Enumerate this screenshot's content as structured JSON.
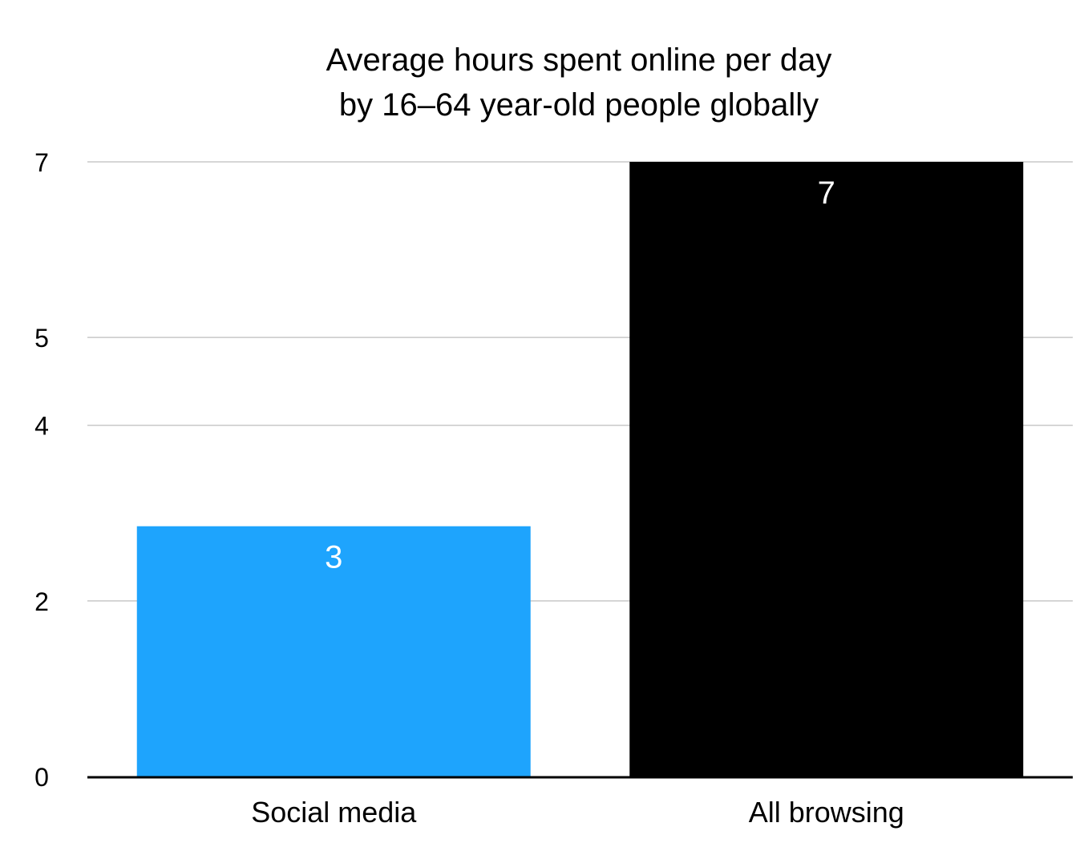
{
  "chart_data": {
    "type": "bar",
    "title_lines": [
      "Average hours spent online per day",
      "by 16–64 year-old people globally"
    ],
    "categories": [
      "Social media",
      "All browsing"
    ],
    "values": [
      2.85,
      7
    ],
    "value_labels": [
      "3",
      "7"
    ],
    "bar_colors": [
      "#1ea4fd",
      "#000000"
    ],
    "y_ticks": [
      0,
      2,
      4,
      5,
      7
    ],
    "y_tick_labels": [
      "0",
      "2",
      "4",
      "5",
      "7"
    ],
    "ylim": [
      0,
      7
    ],
    "xlabel": "",
    "ylabel": "",
    "grid": true,
    "legend": "none"
  }
}
